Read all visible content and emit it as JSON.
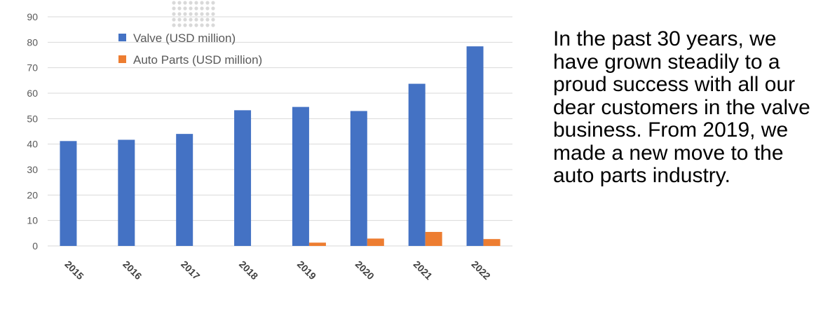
{
  "chart_data": {
    "type": "bar",
    "categories": [
      "2015",
      "2016",
      "2017",
      "2018",
      "2019",
      "2020",
      "2021",
      "2022"
    ],
    "series": [
      {
        "name": "Valve (USD million)",
        "color": "#4472c4",
        "values": [
          41.2,
          41.7,
          44.0,
          53.3,
          54.6,
          53.0,
          63.7,
          78.4
        ]
      },
      {
        "name": "Auto Parts (USD million)",
        "color": "#ed7d31",
        "values": [
          0,
          0,
          0,
          0,
          1.3,
          2.9,
          5.5,
          2.7
        ]
      }
    ],
    "yticks": [
      0,
      10,
      20,
      30,
      40,
      50,
      60,
      70,
      80,
      90
    ],
    "ylim": [
      0,
      90
    ],
    "grid": true,
    "legend_position": "top-left",
    "title": "",
    "xlabel": "",
    "ylabel": ""
  },
  "side_text": "In the past 30 years, we have grown steadily to a proud success with all our dear customers in the valve business. From 2019, we made a new move to the auto parts industry."
}
